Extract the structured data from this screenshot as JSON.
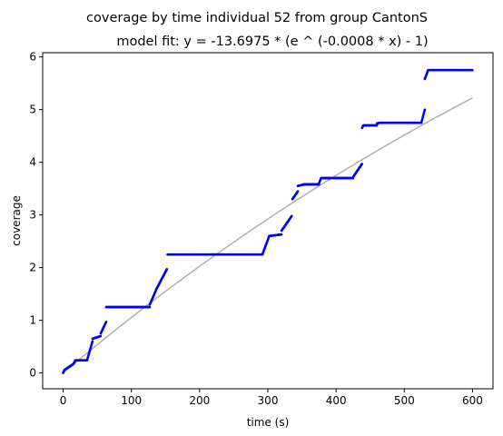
{
  "chart_data": {
    "type": "scatter",
    "title": "coverage by time individual 52 from group CantonS",
    "subtitle": "model fit: y = -13.6975 * (e ^ (-0.0008 * x) - 1)",
    "xlabel": "time (s)",
    "ylabel": "coverage",
    "xlim": [
      -30,
      630
    ],
    "ylim": [
      -0.3,
      6.08
    ],
    "xticks": [
      0,
      100,
      200,
      300,
      400,
      500,
      600
    ],
    "yticks": [
      0,
      1,
      2,
      3,
      4,
      5,
      6
    ],
    "grid": false,
    "legend": "none",
    "model": {
      "a": 13.6975,
      "b": 0.0008,
      "x_range": [
        0,
        600
      ]
    },
    "observed_segments": [
      {
        "x": [
          0,
          2
        ],
        "y": [
          0.0,
          0.06
        ]
      },
      {
        "x": [
          2,
          15
        ],
        "y": [
          0.06,
          0.17
        ]
      },
      {
        "x": [
          15,
          18
        ],
        "y": [
          0.17,
          0.24
        ]
      },
      {
        "x": [
          18,
          35
        ],
        "y": [
          0.24,
          0.24
        ]
      },
      {
        "x": [
          35,
          43
        ],
        "y": [
          0.24,
          0.6
        ]
      },
      {
        "x": [
          43,
          55
        ],
        "y": [
          0.65,
          0.7
        ]
      },
      {
        "x": [
          55,
          63
        ],
        "y": [
          0.75,
          0.97
        ]
      },
      {
        "x": [
          63,
          127
        ],
        "y": [
          1.25,
          1.25
        ]
      },
      {
        "x": [
          127,
          137
        ],
        "y": [
          1.3,
          1.6
        ]
      },
      {
        "x": [
          137,
          152
        ],
        "y": [
          1.6,
          1.97
        ]
      },
      {
        "x": [
          153,
          292
        ],
        "y": [
          2.25,
          2.25
        ]
      },
      {
        "x": [
          292,
          302
        ],
        "y": [
          2.25,
          2.6
        ]
      },
      {
        "x": [
          302,
          320
        ],
        "y": [
          2.6,
          2.63
        ]
      },
      {
        "x": [
          320,
          335
        ],
        "y": [
          2.7,
          2.98
        ]
      },
      {
        "x": [
          336,
          344
        ],
        "y": [
          3.3,
          3.45
        ]
      },
      {
        "x": [
          344,
          353
        ],
        "y": [
          3.55,
          3.58
        ]
      },
      {
        "x": [
          353,
          375
        ],
        "y": [
          3.58,
          3.58
        ]
      },
      {
        "x": [
          375,
          378
        ],
        "y": [
          3.6,
          3.7
        ]
      },
      {
        "x": [
          378,
          425
        ],
        "y": [
          3.7,
          3.7
        ]
      },
      {
        "x": [
          425,
          438
        ],
        "y": [
          3.72,
          3.97
        ]
      },
      {
        "x": [
          438,
          440
        ],
        "y": [
          4.65,
          4.7
        ]
      },
      {
        "x": [
          440,
          460
        ],
        "y": [
          4.7,
          4.7
        ]
      },
      {
        "x": [
          460,
          465
        ],
        "y": [
          4.74,
          4.75
        ]
      },
      {
        "x": [
          465,
          525
        ],
        "y": [
          4.75,
          4.75
        ]
      },
      {
        "x": [
          525,
          530
        ],
        "y": [
          4.75,
          5.0
        ]
      },
      {
        "x": [
          530,
          535
        ],
        "y": [
          5.58,
          5.75
        ]
      },
      {
        "x": [
          535,
          600
        ],
        "y": [
          5.75,
          5.75
        ]
      }
    ]
  },
  "colors": {
    "points": "#0000ff",
    "fit_line": "#b0b0b0",
    "axes": "#000000"
  }
}
